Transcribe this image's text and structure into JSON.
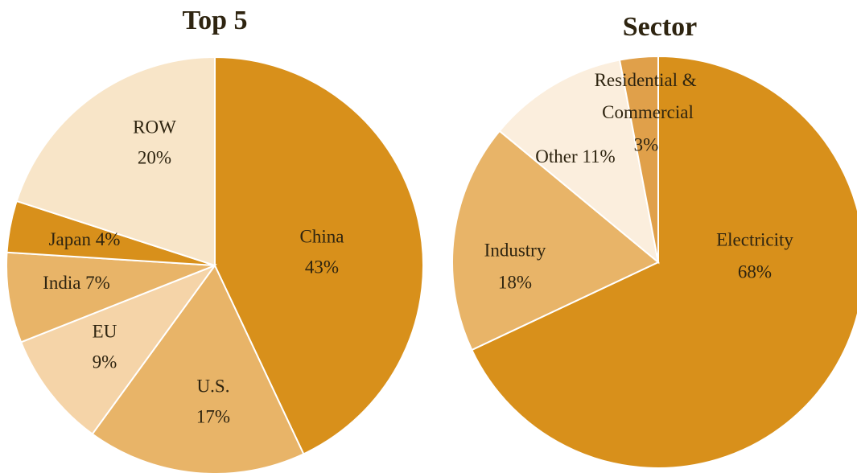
{
  "chart_data": [
    {
      "type": "pie",
      "title": "Top 5",
      "categories": [
        "China",
        "U.S.",
        "EU",
        "India",
        "Japan",
        "ROW"
      ],
      "values": [
        43,
        17,
        9,
        7,
        4,
        20
      ],
      "value_labels": [
        "43%",
        "17%",
        "9%",
        "7%",
        "4%",
        "20%"
      ],
      "colors": [
        "#d8901b",
        "#e8b468",
        "#f5d4a8",
        "#e8b468",
        "#d8901b",
        "#f8e5c8"
      ]
    },
    {
      "type": "pie",
      "title": "Sector",
      "categories": [
        "Electricity",
        "Industry",
        "Other",
        "Residential & Commercial"
      ],
      "values": [
        68,
        18,
        11,
        3
      ],
      "value_labels": [
        "68%",
        "18%",
        "11%",
        "3%"
      ],
      "colors": [
        "#d8901b",
        "#e8b468",
        "#fbeedd",
        "#e0a04a"
      ]
    }
  ]
}
